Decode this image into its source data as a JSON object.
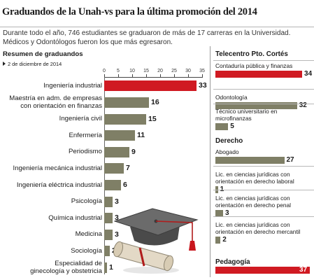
{
  "header": {
    "title": "Graduandos de la Unah-vs para la última promoción del 2014",
    "subtitle_line1": "Durante todo el año, 746 estudiantes se graduaron de más de 17 carreras en la Universidad.",
    "subtitle_line2": "Médicos y Odontólogos fueron los que más egresaron."
  },
  "summary": {
    "title": "Resumen de graduandos",
    "date": "2 de diciembre de 2014"
  },
  "colors": {
    "highlight": "#d01a22",
    "bar": "#7f7f66"
  },
  "illustration": "graduation-cap-and-diploma",
  "chart_data": [
    {
      "type": "bar",
      "orientation": "horizontal",
      "title": "Resumen de graduandos",
      "xlim": [
        0,
        35
      ],
      "xticks": [
        0,
        5,
        10,
        15,
        20,
        25,
        30,
        35
      ],
      "categories": [
        "Ingeniería industrial",
        "Maestría en adm. de empresas con orientación en finanzas",
        "Ingeniería civil",
        "Enfermería",
        "Periodismo",
        "Ingeniería mecánica industrial",
        "Ingeniería eléctrica industrial",
        "Psicología",
        "Química industrial",
        "Medicina",
        "Sociología",
        "Especialidad de ginecología y obstetricia"
      ],
      "label_lines": [
        [
          "Ingeniería industrial"
        ],
        [
          "Maestría en adm. de empresas",
          "con orientación en finanzas"
        ],
        [
          "Ingeniería civil"
        ],
        [
          "Enfermería"
        ],
        [
          "Periodismo"
        ],
        [
          "Ingeniería mecánica industrial"
        ],
        [
          "Ingeniería eléctrica industrial"
        ],
        [
          "Psicología"
        ],
        [
          "Química industrial"
        ],
        [
          "Medicina"
        ],
        [
          "Sociología"
        ],
        [
          "Especialidad de",
          "ginecología y obstetricia"
        ]
      ],
      "values": [
        33,
        16,
        15,
        11,
        9,
        7,
        6,
        3,
        3,
        3,
        2,
        1
      ],
      "highlight": [
        true,
        false,
        false,
        false,
        false,
        false,
        false,
        false,
        false,
        false,
        false,
        false
      ]
    },
    {
      "type": "bar",
      "orientation": "horizontal",
      "title": "Telecentro Pto. Cortés",
      "categories": [
        "Contaduría pública y finanzas",
        "Odontología",
        "Técnico universitario en microfinanzas"
      ],
      "values": [
        34,
        32,
        5
      ],
      "highlight": [
        true,
        false,
        false
      ]
    },
    {
      "type": "bar",
      "orientation": "horizontal",
      "title": "Derecho",
      "categories": [
        "Abogado",
        "Lic. en ciencias jurídicas con orientación en derecho laboral",
        "Lic. en ciencias jurídicas con orientación en derecho penal",
        "Lic. en ciencias jurídicas con orientación en derecho mercantil"
      ],
      "values": [
        27,
        1,
        3,
        2
      ],
      "highlight": [
        false,
        false,
        false,
        false
      ]
    },
    {
      "type": "bar",
      "orientation": "horizontal",
      "title": "Pedagogía",
      "categories": [
        ""
      ],
      "values": [
        37
      ],
      "highlight": [
        true
      ]
    }
  ],
  "right_label_lines": {
    "telecentro": [
      [
        "Contaduría pública y finanzas"
      ],
      [
        "Odontología"
      ],
      [
        "Técnico universitario en",
        "microfinanzas"
      ]
    ],
    "derecho": [
      [
        "Abogado"
      ],
      [
        "Lic. en ciencias jurídicas con",
        "orientación en derecho laboral"
      ],
      [
        "Lic. en ciencias jurídicas con",
        "orientación en derecho penal"
      ],
      [
        "Lic. en ciencias jurídicas con",
        "orientación en derecho mercantil"
      ]
    ]
  }
}
